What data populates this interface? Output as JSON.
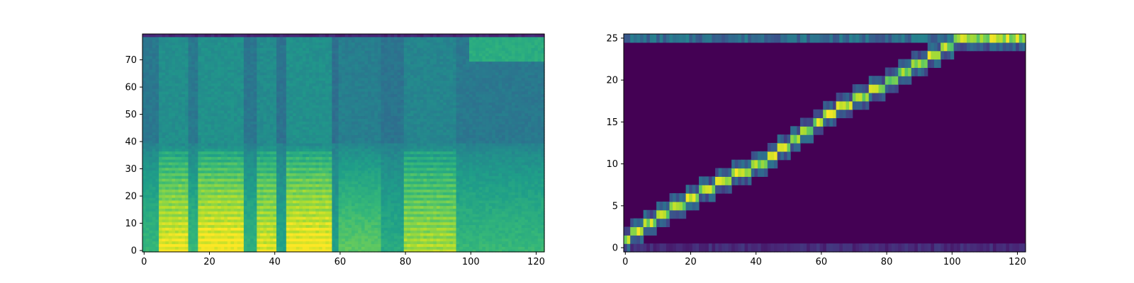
{
  "chart_data": [
    {
      "type": "heatmap",
      "title": "",
      "xlabel": "",
      "ylabel": "",
      "colormap": "viridis",
      "xlim": [
        0,
        123
      ],
      "ylim": [
        0,
        80
      ],
      "grid": false,
      "x_ticks": [
        0,
        20,
        40,
        60,
        80,
        100,
        120
      ],
      "y_ticks": [
        0,
        10,
        20,
        30,
        40,
        50,
        60,
        70
      ],
      "x_tick_labels": [
        "0",
        "20",
        "40",
        "60",
        "80",
        "100",
        "120"
      ],
      "y_tick_labels": [
        "0",
        "10",
        "20",
        "30",
        "40",
        "50",
        "60",
        "70"
      ],
      "n_frames": 123,
      "n_bins": 80,
      "frame_energy_segments": [
        {
          "x_start": 0,
          "x_end": 5,
          "level": 0.45
        },
        {
          "x_start": 5,
          "x_end": 14,
          "level": 0.95
        },
        {
          "x_start": 14,
          "x_end": 17,
          "level": 0.45
        },
        {
          "x_start": 17,
          "x_end": 31,
          "level": 1.0
        },
        {
          "x_start": 31,
          "x_end": 35,
          "level": 0.4
        },
        {
          "x_start": 35,
          "x_end": 41,
          "level": 0.9
        },
        {
          "x_start": 41,
          "x_end": 44,
          "level": 0.3
        },
        {
          "x_start": 44,
          "x_end": 58,
          "level": 1.0
        },
        {
          "x_start": 58,
          "x_end": 60,
          "level": 0.25
        },
        {
          "x_start": 60,
          "x_end": 73,
          "level": 0.6
        },
        {
          "x_start": 73,
          "x_end": 80,
          "level": 0.35
        },
        {
          "x_start": 80,
          "x_end": 96,
          "level": 0.75
        },
        {
          "x_start": 96,
          "x_end": 123,
          "level": 0.45
        }
      ]
    },
    {
      "type": "heatmap",
      "title": "",
      "xlabel": "",
      "ylabel": "",
      "colormap": "viridis",
      "xlim": [
        0,
        123
      ],
      "ylim": [
        0,
        26
      ],
      "grid": false,
      "x_ticks": [
        0,
        20,
        40,
        60,
        80,
        100,
        120
      ],
      "y_ticks": [
        0,
        5,
        10,
        15,
        20,
        25
      ],
      "x_tick_labels": [
        "0",
        "20",
        "40",
        "60",
        "80",
        "100",
        "120"
      ],
      "y_tick_labels": [
        "0",
        "5",
        "10",
        "15",
        "20",
        "25"
      ],
      "n_decoder_steps": 123,
      "n_encoder_steps": 26,
      "alignment_path": [
        {
          "x": 0,
          "y": 1
        },
        {
          "x": 4,
          "y": 2
        },
        {
          "x": 8,
          "y": 3
        },
        {
          "x": 11,
          "y": 4
        },
        {
          "x": 16,
          "y": 5
        },
        {
          "x": 21,
          "y": 6
        },
        {
          "x": 25,
          "y": 7
        },
        {
          "x": 30,
          "y": 8
        },
        {
          "x": 35,
          "y": 9
        },
        {
          "x": 42,
          "y": 10
        },
        {
          "x": 45,
          "y": 11
        },
        {
          "x": 49,
          "y": 12
        },
        {
          "x": 52,
          "y": 13
        },
        {
          "x": 56,
          "y": 14
        },
        {
          "x": 59,
          "y": 15
        },
        {
          "x": 63,
          "y": 16
        },
        {
          "x": 67,
          "y": 17
        },
        {
          "x": 72,
          "y": 18
        },
        {
          "x": 78,
          "y": 19
        },
        {
          "x": 82,
          "y": 20
        },
        {
          "x": 86,
          "y": 21
        },
        {
          "x": 90,
          "y": 22
        },
        {
          "x": 95,
          "y": 23
        },
        {
          "x": 99,
          "y": 24
        },
        {
          "x": 103,
          "y": 25
        },
        {
          "x": 123,
          "y": 25
        }
      ],
      "top_row_level": 0.35,
      "bottom_row_level": 0.12
    }
  ]
}
